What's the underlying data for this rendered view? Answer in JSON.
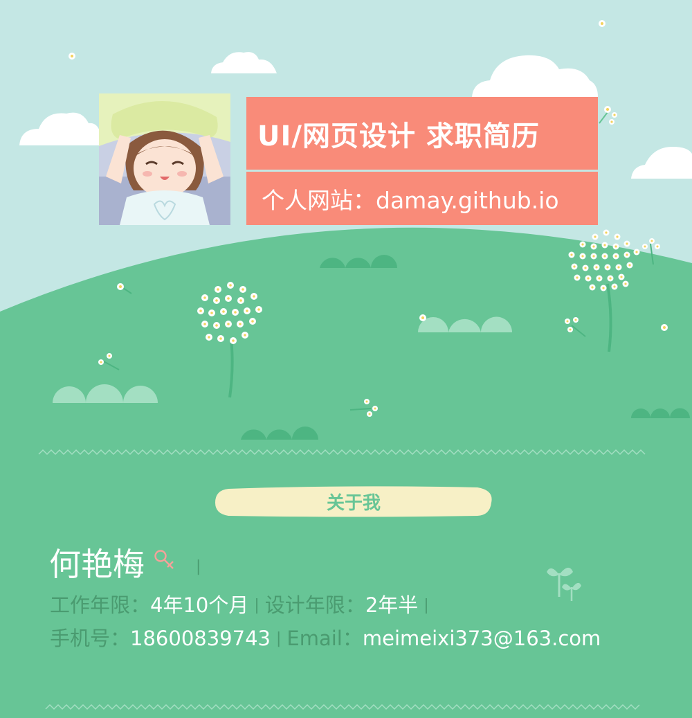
{
  "header": {
    "title": "UI/网页设计 求职简历",
    "website_label": "个人网站：",
    "website_url": "damay.github.io"
  },
  "about": {
    "section_label": "关于我"
  },
  "profile": {
    "name": "何艳梅",
    "gender_symbol": "♀",
    "work_years_label": "工作年限：",
    "work_years_value": "4年10个月",
    "design_years_label": "设计年限：",
    "design_years_value": "2年半",
    "phone_label": "手机号：",
    "phone_value": "18600839743",
    "email_label": "Email：",
    "email_value": "meimeixi373@163.com",
    "divider": "|"
  },
  "colors": {
    "sky": "#c4e7e4",
    "grass": "#67c596",
    "title_bg": "#f98b79",
    "pill_bg": "#f7f0c6",
    "dark_green": "#4a9b70"
  }
}
